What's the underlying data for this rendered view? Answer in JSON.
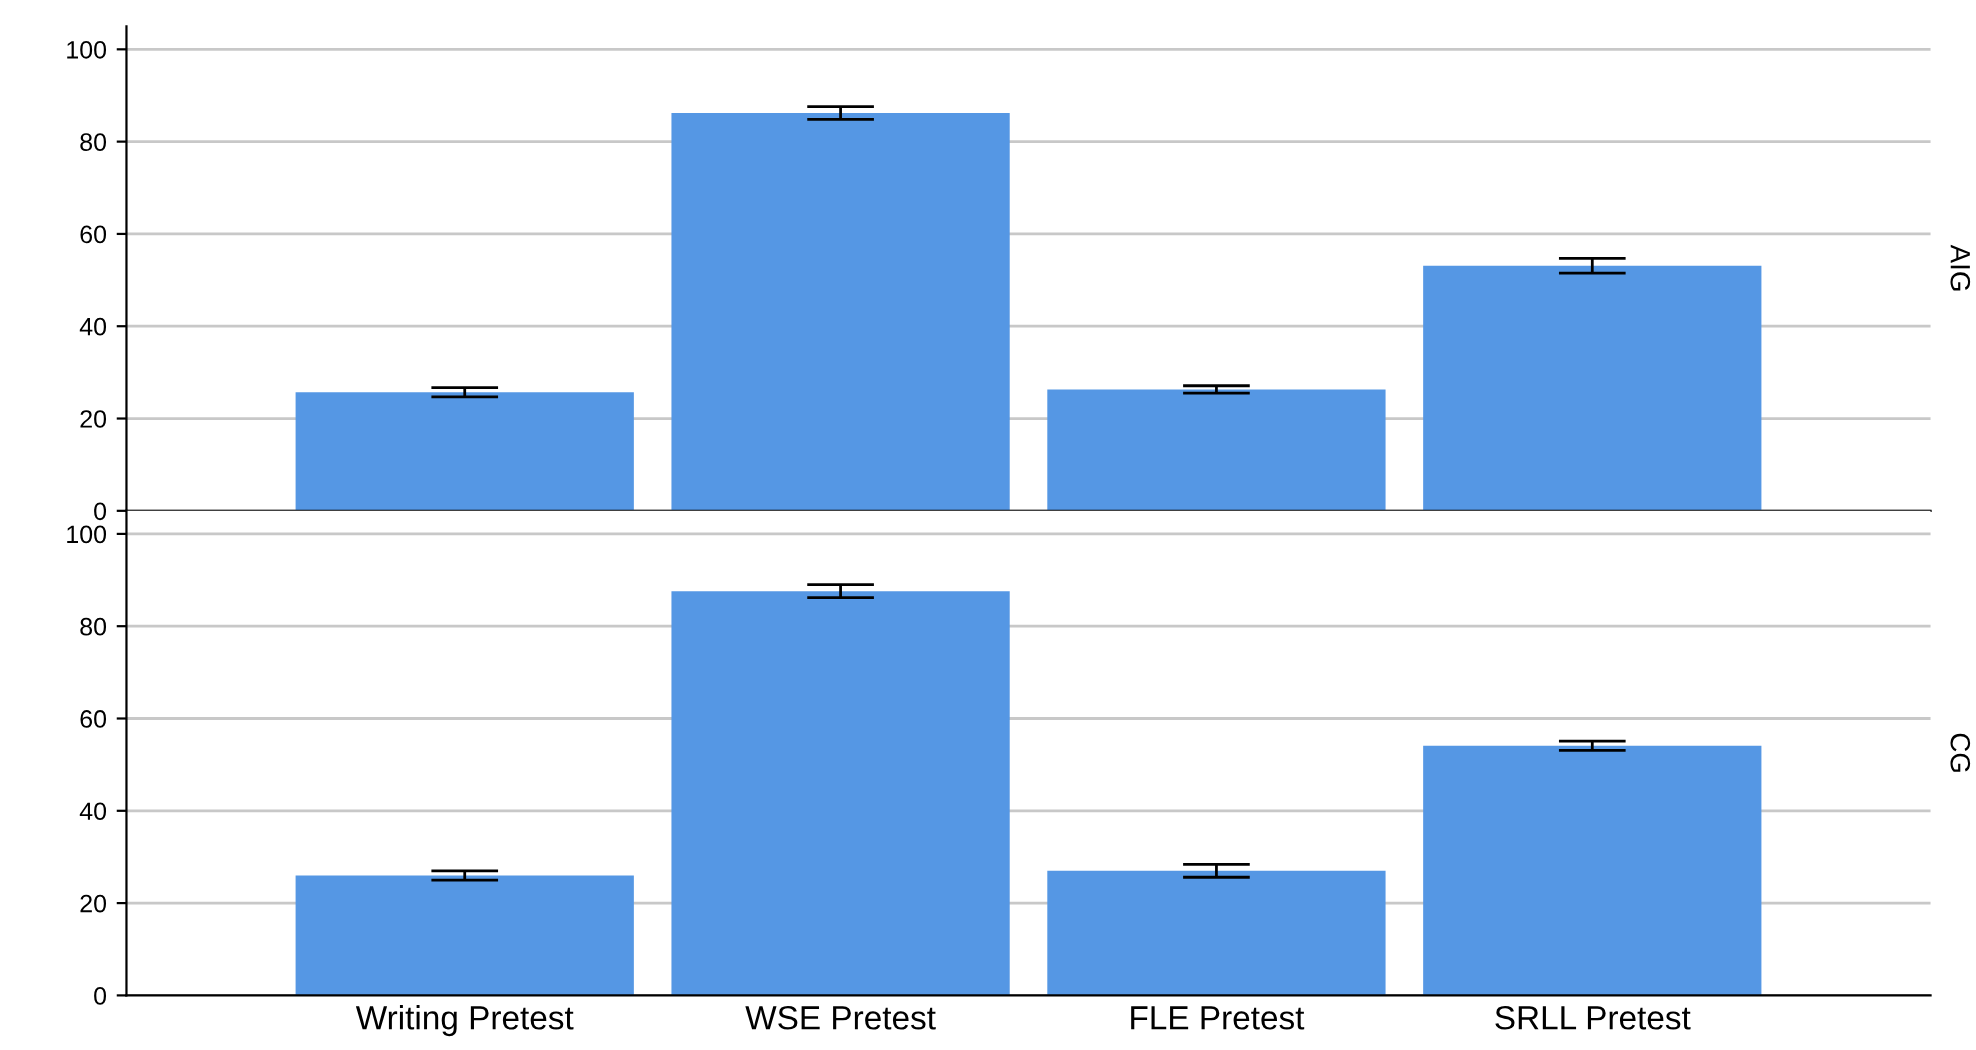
{
  "chart_data": [
    {
      "type": "bar",
      "categories": [
        null,
        null,
        null,
        null
      ],
      "values": [
        25.7,
        86.2,
        26.3,
        53.1
      ],
      "errors": [
        1.0,
        1.4,
        0.8,
        1.6
      ],
      "color": "#5597e4",
      "ylim": [
        0,
        105
      ],
      "yticks": [
        0,
        20,
        40,
        60,
        80,
        100
      ],
      "grid": "y",
      "tick_labels": "y",
      "annotations": [
        "AIG"
      ]
    },
    {
      "type": "bar",
      "categories": [
        "Writing Pretest",
        "WSE Pretest",
        "FLE Pretest",
        "SRLL Pretest"
      ],
      "values": [
        26.0,
        87.6,
        27.0,
        54.1
      ],
      "errors": [
        1.0,
        1.4,
        1.4,
        1.0
      ],
      "color": "#5597e4",
      "ylim": [
        0,
        105
      ],
      "yticks": [
        0,
        20,
        40,
        60,
        80,
        100
      ],
      "grid": "y",
      "annotations": [
        "CG"
      ]
    }
  ]
}
